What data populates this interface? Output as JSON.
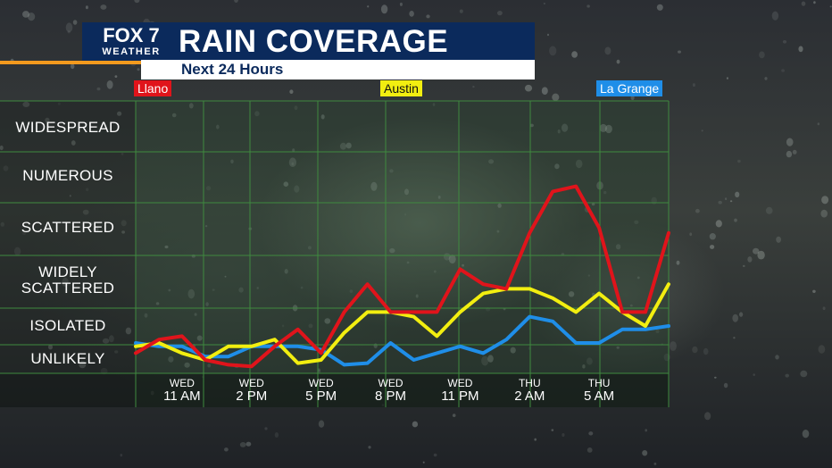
{
  "brand": {
    "logo_main": "FOX 7",
    "logo_sub": "WEATHER"
  },
  "header": {
    "title": "RAIN COVERAGE",
    "subtitle": "Next 24 Hours"
  },
  "colors": {
    "llano": "#e0141b",
    "austin": "#f2ee10",
    "la_grange": "#1f8ee8",
    "header_bg": "#0b2a5c",
    "accent": "#f39a1e",
    "grid": "#3f8a3f"
  },
  "chart_data": {
    "type": "line",
    "title": "RAIN COVERAGE",
    "subtitle": "Next 24 Hours",
    "y_levels": [
      "UNLIKELY",
      "ISOLATED",
      "WIDELY SCATTERED",
      "SCATTERED",
      "NUMEROUS",
      "WIDESPREAD"
    ],
    "x_ticks": [
      {
        "day": "WED",
        "time": "11 AM",
        "hour": 11
      },
      {
        "day": "WED",
        "time": "2 PM",
        "hour": 14
      },
      {
        "day": "WED",
        "time": "5 PM",
        "hour": 17
      },
      {
        "day": "WED",
        "time": "8 PM",
        "hour": 20
      },
      {
        "day": "WED",
        "time": "11 PM",
        "hour": 23
      },
      {
        "day": "THU",
        "time": "2 AM",
        "hour": 26
      },
      {
        "day": "THU",
        "time": "5 AM",
        "hour": 29
      }
    ],
    "x_range_hours": [
      9,
      32
    ],
    "x_unit": "hours after midnight Wednesday",
    "y_scale": "0 = UNLIKELY, 1 = ISOLATED, 2 = WIDELY SCATTERED, 3 = SCATTERED, 4 = NUMEROUS, 5 = WIDESPREAD",
    "series": [
      {
        "name": "Llano",
        "color": "#e0141b",
        "x": [
          9,
          10,
          11,
          12,
          13,
          14,
          15,
          16,
          17,
          18,
          19,
          20,
          21,
          22,
          23,
          24,
          25,
          26,
          27,
          28,
          29,
          30,
          31,
          32
        ],
        "y": [
          0.2,
          0.6,
          0.7,
          0.0,
          -0.3,
          -0.4,
          0.4,
          0.9,
          0.2,
          1.3,
          1.9,
          1.3,
          1.3,
          1.3,
          2.2,
          1.9,
          1.8,
          2.9,
          3.7,
          3.8,
          3.0,
          1.3,
          1.3,
          2.9
        ]
      },
      {
        "name": "Austin",
        "color": "#f2ee10",
        "x": [
          9,
          10,
          11,
          12,
          13,
          14,
          15,
          16,
          17,
          18,
          19,
          20,
          21,
          22,
          23,
          24,
          25,
          26,
          27,
          28,
          29,
          30,
          31,
          32
        ],
        "y": [
          0.4,
          0.5,
          0.2,
          0.0,
          0.4,
          0.4,
          0.6,
          -0.2,
          0.0,
          0.8,
          1.3,
          1.3,
          1.2,
          0.7,
          1.3,
          1.7,
          1.8,
          1.8,
          1.6,
          1.3,
          1.7,
          1.3,
          1.0,
          1.9
        ]
      },
      {
        "name": "La Grange",
        "color": "#1f8ee8",
        "x": [
          9,
          10,
          11,
          12,
          13,
          14,
          15,
          16,
          17,
          18,
          19,
          20,
          21,
          22,
          23,
          24,
          25,
          26,
          27,
          28,
          29,
          30,
          31,
          32
        ],
        "y": [
          0.5,
          0.4,
          0.4,
          0.1,
          0.1,
          0.4,
          0.4,
          0.4,
          0.3,
          -0.3,
          -0.2,
          0.5,
          0.0,
          0.2,
          0.4,
          0.2,
          0.6,
          1.2,
          1.1,
          0.5,
          0.5,
          0.9,
          0.9,
          1.0
        ]
      }
    ],
    "legend_position": "top",
    "grid": true
  }
}
